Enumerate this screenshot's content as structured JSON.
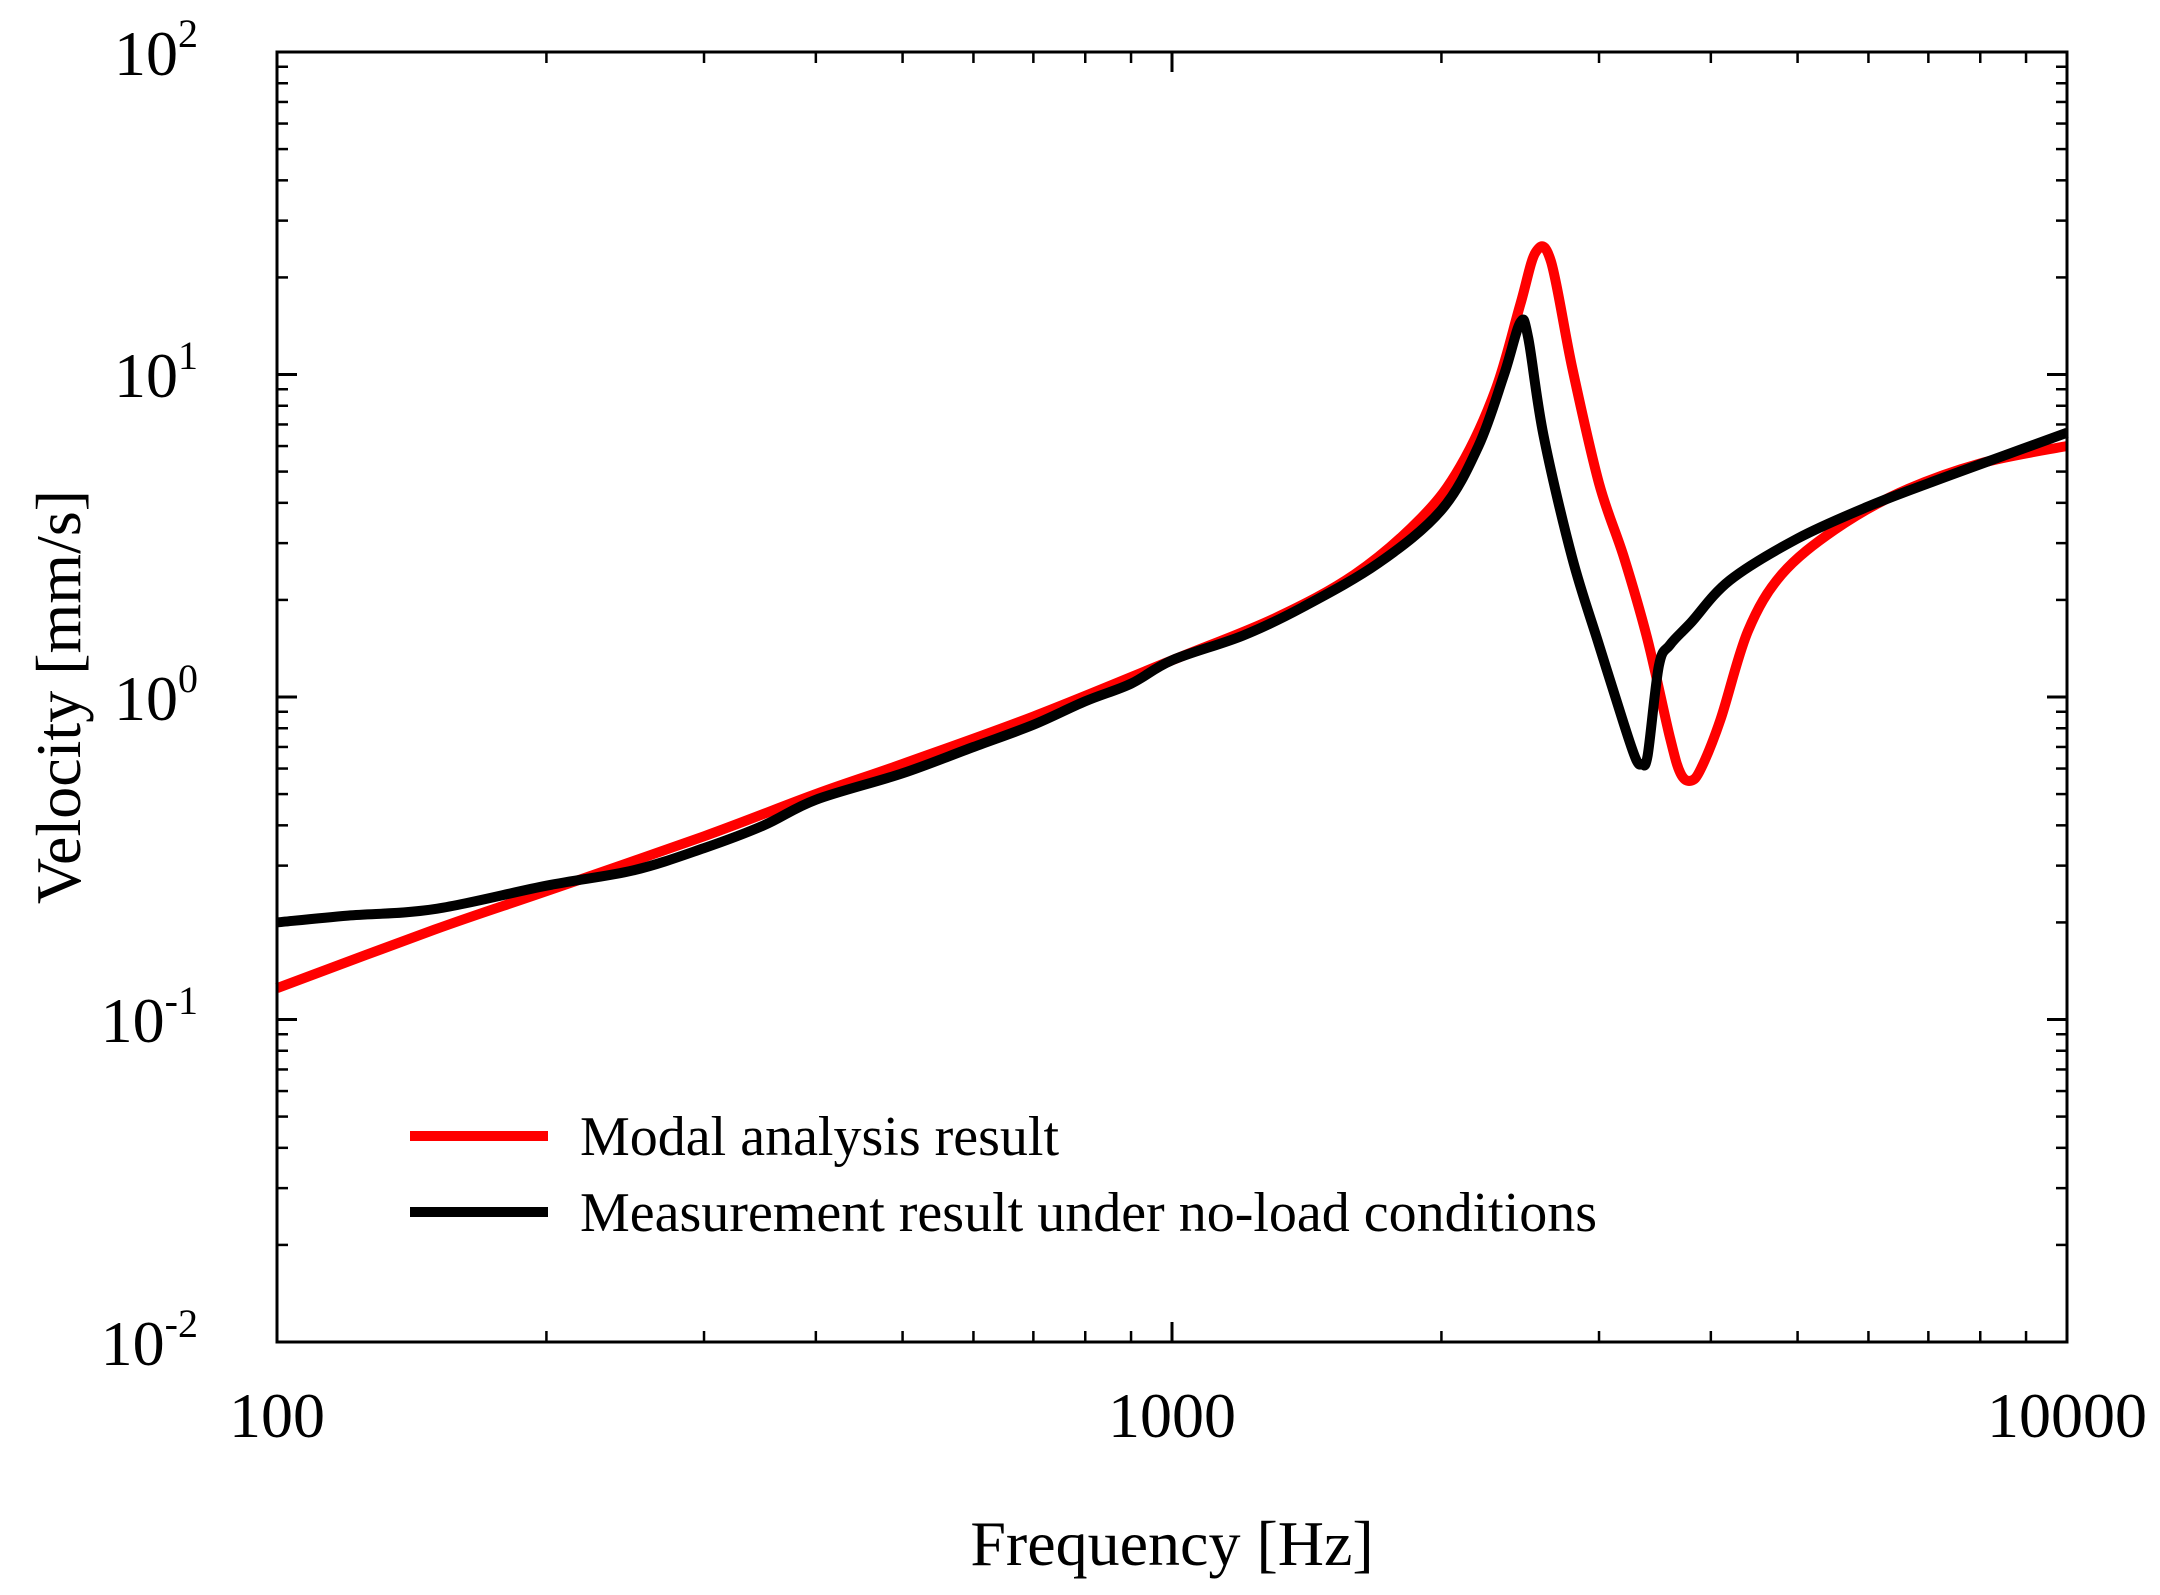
{
  "chart_data": {
    "type": "line",
    "title": "",
    "xlabel": "Frequency [Hz]",
    "ylabel": "Velocity [mm/s]",
    "xscale": "log",
    "yscale": "log",
    "xlim": [
      100,
      10000
    ],
    "ylim": [
      0.01,
      100
    ],
    "grid": false,
    "legend_position": "bottom-left",
    "x_ticks": [
      {
        "value": 100,
        "label": "100"
      },
      {
        "value": 1000,
        "label": "1000"
      },
      {
        "value": 10000,
        "label": "10000"
      }
    ],
    "y_ticks": [
      {
        "value": 100,
        "base": "10",
        "exp": "2"
      },
      {
        "value": 10,
        "base": "10",
        "exp": "1"
      },
      {
        "value": 1,
        "base": "10",
        "exp": "0"
      },
      {
        "value": 0.1,
        "base": "10",
        "exp": "-1"
      },
      {
        "value": 0.01,
        "base": "10",
        "exp": "-2"
      }
    ],
    "series": [
      {
        "name": "Modal analysis result",
        "color": "#ff0000",
        "x": [
          100,
          150,
          200,
          300,
          400,
          500,
          700,
          1000,
          1300,
          1600,
          1900,
          2100,
          2300,
          2450,
          2550,
          2650,
          2800,
          3000,
          3200,
          3400,
          3600,
          3700,
          3800,
          3900,
          4100,
          4400,
          4800,
          5500,
          6500,
          8000,
          10000
        ],
        "y": [
          0.125,
          0.19,
          0.25,
          0.37,
          0.5,
          0.62,
          0.87,
          1.3,
          1.75,
          2.4,
          3.6,
          5.2,
          9.0,
          16.5,
          24.0,
          22.5,
          10.5,
          4.6,
          2.7,
          1.5,
          0.75,
          0.58,
          0.55,
          0.6,
          0.85,
          1.6,
          2.4,
          3.3,
          4.3,
          5.3,
          6.0
        ]
      },
      {
        "name": "Measurement result under no-load conditions",
        "color": "#000000",
        "x": [
          100,
          120,
          150,
          200,
          250,
          300,
          350,
          400,
          500,
          600,
          700,
          800,
          900,
          1000,
          1200,
          1400,
          1700,
          2000,
          2200,
          2350,
          2450,
          2500,
          2600,
          2800,
          3000,
          3200,
          3300,
          3350,
          3400,
          3500,
          3600,
          3800,
          4200,
          5000,
          6000,
          7000,
          8500,
          10000
        ],
        "y": [
          0.2,
          0.21,
          0.22,
          0.26,
          0.29,
          0.34,
          0.4,
          0.48,
          0.58,
          0.7,
          0.82,
          0.97,
          1.1,
          1.3,
          1.55,
          1.9,
          2.6,
          3.8,
          6.0,
          10.0,
          14.5,
          13.0,
          6.5,
          2.7,
          1.45,
          0.82,
          0.64,
          0.62,
          0.66,
          1.25,
          1.45,
          1.7,
          2.3,
          3.1,
          3.9,
          4.6,
          5.6,
          6.6
        ]
      }
    ]
  }
}
